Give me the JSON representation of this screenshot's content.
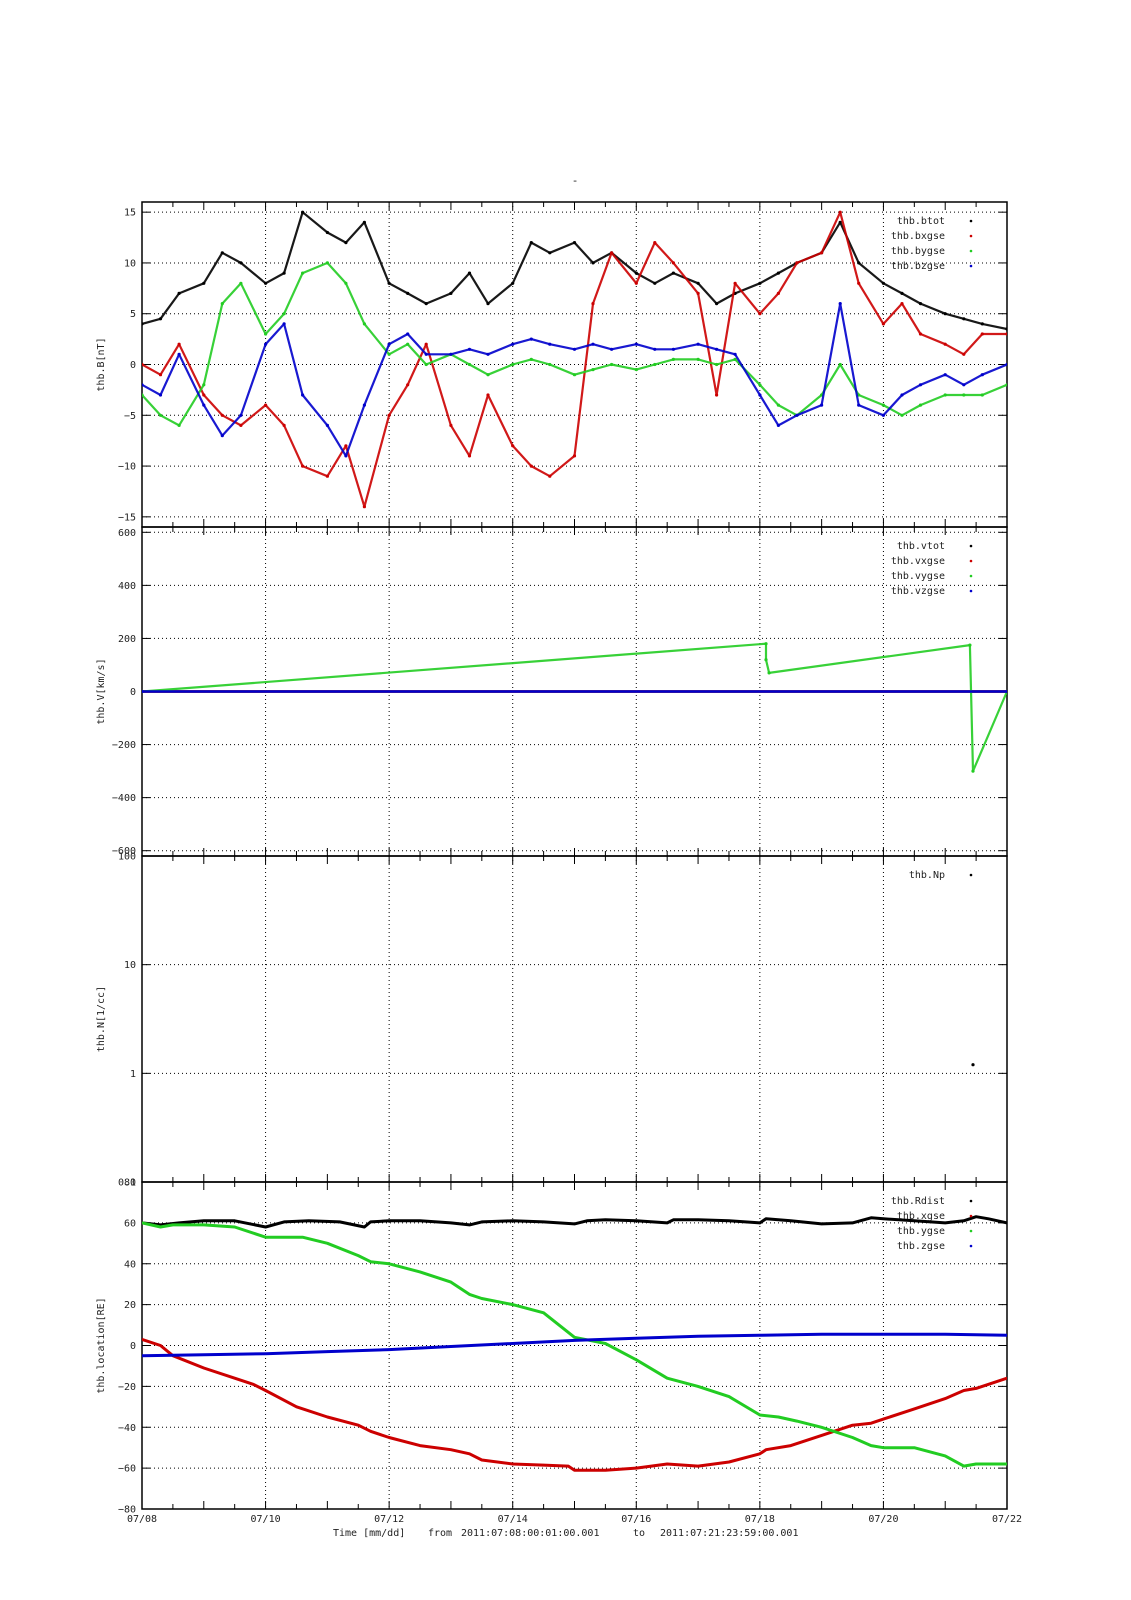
{
  "page": {
    "top_mark": "-",
    "footer": {
      "axis_label": "Time [mm/dd]",
      "from_label": "from",
      "from_value": "2011:07:08:00:01:00.001",
      "to_label": "to",
      "to_value": "2011:07:21:23:59:00.001"
    }
  },
  "x_axis": {
    "range_days": [
      8,
      22
    ],
    "tick_labels": [
      "07/08",
      "07/10",
      "07/12",
      "07/14",
      "07/16",
      "07/18",
      "07/20",
      "07/22"
    ],
    "tick_days": [
      8,
      10,
      12,
      14,
      16,
      18,
      20,
      22
    ]
  },
  "colors": {
    "black": "#000000",
    "red": "#cc0000",
    "green": "#22cc22",
    "blue": "#0000cc"
  },
  "chart_data": [
    {
      "type": "scatter",
      "ylabel": "thb.B[nT]",
      "ylim": [
        -16,
        16
      ],
      "yscale": "linear",
      "yticks": [
        -15,
        -10,
        -5,
        0,
        5,
        10,
        15
      ],
      "grid": true,
      "legend_position": "top-right",
      "series": [
        {
          "name": "thb.btot",
          "color": "black",
          "x": [
            8,
            8.3,
            8.6,
            9,
            9.3,
            9.6,
            10,
            10.3,
            10.6,
            11,
            11.3,
            11.6,
            12,
            12.3,
            12.6,
            13,
            13.3,
            13.6,
            14,
            14.3,
            14.6,
            15,
            15.3,
            15.6,
            16,
            16.3,
            16.6,
            17,
            17.3,
            17.6,
            18,
            18.3,
            18.6,
            19,
            19.3,
            19.6,
            20,
            20.3,
            20.6,
            21,
            21.3,
            21.6,
            22
          ],
          "y": [
            4,
            4.5,
            7,
            8,
            11,
            10,
            8,
            9,
            15,
            13,
            12,
            14,
            8,
            7,
            6,
            7,
            9,
            6,
            8,
            12,
            11,
            12,
            10,
            11,
            9,
            8,
            9,
            8,
            6,
            7,
            8,
            9,
            10,
            11,
            14,
            10,
            8,
            7,
            6,
            5,
            4.5,
            4,
            3.5
          ]
        },
        {
          "name": "thb.bxgse",
          "color": "red",
          "x": [
            8,
            8.3,
            8.6,
            9,
            9.3,
            9.6,
            10,
            10.3,
            10.6,
            11,
            11.3,
            11.6,
            12,
            12.3,
            12.6,
            13,
            13.3,
            13.6,
            14,
            14.3,
            14.6,
            15,
            15.3,
            15.6,
            16,
            16.3,
            16.6,
            17,
            17.3,
            17.6,
            18,
            18.3,
            18.6,
            19,
            19.3,
            19.6,
            20,
            20.3,
            20.6,
            21,
            21.3,
            21.6,
            22
          ],
          "y": [
            0,
            -1,
            2,
            -3,
            -5,
            -6,
            -4,
            -6,
            -10,
            -11,
            -8,
            -14,
            -5,
            -2,
            2,
            -6,
            -9,
            -3,
            -8,
            -10,
            -11,
            -9,
            6,
            11,
            8,
            12,
            10,
            7,
            -3,
            8,
            5,
            7,
            10,
            11,
            15,
            8,
            4,
            6,
            3,
            2,
            1,
            3,
            3
          ]
        },
        {
          "name": "thb.bygse",
          "color": "green",
          "x": [
            8,
            8.3,
            8.6,
            9,
            9.3,
            9.6,
            10,
            10.3,
            10.6,
            11,
            11.3,
            11.6,
            12,
            12.3,
            12.6,
            13,
            13.3,
            13.6,
            14,
            14.3,
            14.6,
            15,
            15.3,
            15.6,
            16,
            16.3,
            16.6,
            17,
            17.3,
            17.6,
            18,
            18.3,
            18.6,
            19,
            19.3,
            19.6,
            20,
            20.3,
            20.6,
            21,
            21.3,
            21.6,
            22
          ],
          "y": [
            -3,
            -5,
            -6,
            -2,
            6,
            8,
            3,
            5,
            9,
            10,
            8,
            4,
            1,
            2,
            0,
            1,
            0,
            -1,
            0,
            0.5,
            0,
            -1,
            -0.5,
            0,
            -0.5,
            0,
            0.5,
            0.5,
            0,
            0.5,
            -2,
            -4,
            -5,
            -3,
            0,
            -3,
            -4,
            -5,
            -4,
            -3,
            -3,
            -3,
            -2
          ]
        },
        {
          "name": "thb.bzgse",
          "color": "blue",
          "x": [
            8,
            8.3,
            8.6,
            9,
            9.3,
            9.6,
            10,
            10.3,
            10.6,
            11,
            11.3,
            11.6,
            12,
            12.3,
            12.6,
            13,
            13.3,
            13.6,
            14,
            14.3,
            14.6,
            15,
            15.3,
            15.6,
            16,
            16.3,
            16.6,
            17,
            17.3,
            17.6,
            18,
            18.3,
            18.6,
            19,
            19.3,
            19.6,
            20,
            20.3,
            20.6,
            21,
            21.3,
            21.6,
            22
          ],
          "y": [
            -2,
            -3,
            1,
            -4,
            -7,
            -5,
            2,
            4,
            -3,
            -6,
            -9,
            -4,
            2,
            3,
            1,
            1,
            1.5,
            1,
            2,
            2.5,
            2,
            1.5,
            2,
            1.5,
            2,
            1.5,
            1.5,
            2,
            1.5,
            1,
            -3,
            -6,
            -5,
            -4,
            6,
            -4,
            -5,
            -3,
            -2,
            -1,
            -2,
            -1,
            0
          ]
        }
      ]
    },
    {
      "type": "scatter",
      "ylabel": "thb.V[km/s]",
      "ylim": [
        -620,
        620
      ],
      "yscale": "linear",
      "yticks": [
        -600,
        -400,
        -200,
        0,
        200,
        400,
        600
      ],
      "grid": true,
      "legend_position": "top-right",
      "series": [
        {
          "name": "thb.vtot",
          "color": "black",
          "x": [
            8,
            22
          ],
          "y": [
            0,
            0
          ]
        },
        {
          "name": "thb.vxgse",
          "color": "red",
          "x": [
            8,
            22
          ],
          "y": [
            0,
            0
          ]
        },
        {
          "name": "thb.vygse",
          "color": "green",
          "x": [
            8,
            18.1,
            18.1,
            18.15,
            21.4,
            21.45,
            22
          ],
          "y": [
            0,
            180,
            120,
            70,
            175,
            -300,
            0
          ]
        },
        {
          "name": "thb.vzgse",
          "color": "blue",
          "x": [
            8,
            22
          ],
          "y": [
            0,
            0
          ]
        }
      ]
    },
    {
      "type": "scatter",
      "ylabel": "thb.N[1/cc]",
      "ylim": [
        0.1,
        100
      ],
      "yscale": "log",
      "yticks": [
        0.1,
        1,
        10,
        100
      ],
      "ytick_labels": [
        "0.1",
        "1",
        "10",
        "100"
      ],
      "grid": true,
      "legend_position": "top-right",
      "series": [
        {
          "name": "thb.Np",
          "color": "black",
          "x": [
            21.45
          ],
          "y": [
            1.2
          ]
        }
      ]
    },
    {
      "type": "line",
      "ylabel": "thb.location[RE]",
      "ylim": [
        -80,
        80
      ],
      "yscale": "linear",
      "yticks": [
        -80,
        -60,
        -40,
        -20,
        0,
        20,
        40,
        60,
        80
      ],
      "grid": true,
      "legend_position": "top-right",
      "series": [
        {
          "name": "thb.Rdist",
          "color": "black",
          "x": [
            8,
            8.3,
            8.6,
            9,
            9.5,
            10,
            10.3,
            10.7,
            11.2,
            11.6,
            11.7,
            12,
            12.5,
            13,
            13.3,
            13.5,
            14,
            14.5,
            15,
            15.2,
            15.5,
            16,
            16.5,
            16.6,
            17,
            17.5,
            18,
            18.1,
            18.5,
            19,
            19.5,
            19.8,
            20,
            20.5,
            21,
            21.3,
            21.5,
            21.7,
            22
          ],
          "y": [
            60,
            59,
            60,
            61,
            61,
            58,
            60.5,
            61,
            60.5,
            58,
            60.5,
            61,
            61,
            60,
            59,
            60.5,
            61,
            60.5,
            59.5,
            61,
            61.5,
            61,
            60,
            61.5,
            61.5,
            61,
            60,
            62,
            61,
            59.5,
            60,
            62.5,
            62,
            61,
            60,
            61,
            63,
            62,
            60
          ]
        },
        {
          "name": "thb.xgse",
          "color": "red",
          "x": [
            8,
            8.3,
            8.5,
            9,
            9.5,
            9.8,
            10,
            10.5,
            11,
            11.5,
            11.7,
            12,
            12.5,
            13,
            13.3,
            13.5,
            14,
            14.5,
            14.9,
            15,
            15.5,
            16,
            16.5,
            17,
            17.5,
            18,
            18.1,
            18.5,
            19,
            19.5,
            19.8,
            20,
            20.5,
            21,
            21.3,
            21.5,
            22
          ],
          "y": [
            3,
            0,
            -5,
            -11,
            -16,
            -19,
            -22,
            -30,
            -35,
            -39,
            -42,
            -45,
            -49,
            -51,
            -53,
            -56,
            -58,
            -58.5,
            -59,
            -61,
            -61,
            -60,
            -58,
            -59,
            -57,
            -53,
            -51,
            -49,
            -44,
            -39,
            -38,
            -36,
            -31,
            -26,
            -22,
            -21,
            -16
          ]
        },
        {
          "name": "thb.ygse",
          "color": "green",
          "x": [
            8,
            8.3,
            8.5,
            9,
            9.5,
            10,
            10.3,
            10.6,
            11,
            11.5,
            11.7,
            12,
            12.5,
            13,
            13.3,
            13.5,
            14,
            14.5,
            15,
            15.5,
            16,
            16.5,
            17,
            17.5,
            18,
            18.3,
            18.6,
            19,
            19.5,
            19.8,
            20,
            20.5,
            21,
            21.3,
            21.5,
            22
          ],
          "y": [
            60,
            58,
            59,
            59,
            58,
            53,
            53,
            53,
            50,
            44,
            41,
            40,
            36,
            31,
            25,
            23,
            20,
            16,
            4,
            1,
            -7,
            -16,
            -20,
            -25,
            -34,
            -35,
            -37,
            -40,
            -45,
            -49,
            -50,
            -50,
            -54,
            -59,
            -58,
            -58
          ]
        },
        {
          "name": "thb.zgse",
          "color": "blue",
          "x": [
            8,
            9,
            10,
            11,
            12,
            13,
            14,
            15,
            16,
            17,
            18,
            19,
            20,
            21,
            22
          ],
          "y": [
            -5,
            -4.5,
            -4,
            -3,
            -2,
            -0.5,
            1,
            2.5,
            3.5,
            4.5,
            5,
            5.5,
            5.5,
            5.5,
            5
          ]
        }
      ]
    }
  ]
}
